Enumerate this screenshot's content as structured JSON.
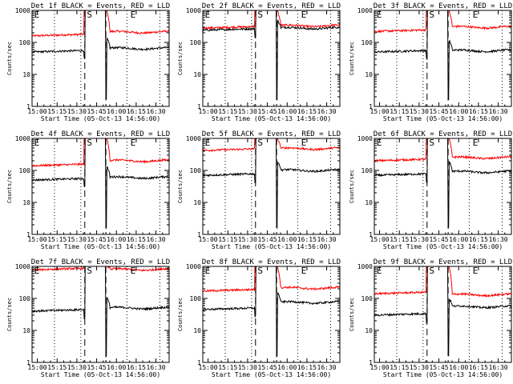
{
  "chart_data": {
    "type": "line",
    "ylabel": "Counts/sec",
    "xlabel": "Start Time (05-Oct-13 14:56:00)",
    "yscale": "log",
    "ylim": [
      1,
      1000
    ],
    "xlim": [
      "14:56",
      "16:40"
    ],
    "x_ticks": [
      "15:00",
      "15:15",
      "15:30",
      "15:45",
      "16:00",
      "16:15",
      "16:30"
    ],
    "y_ticks": [
      "1",
      "10",
      "100",
      "1000"
    ],
    "grid": false,
    "colors": {
      "events": "#000000",
      "lld": "#ff0000"
    },
    "dotted_lines_at": [
      "15:13",
      "15:33",
      "16:08",
      "16:33"
    ],
    "dashed_lines_at": [
      "15:36",
      "15:52"
    ],
    "markers": [
      {
        "label": "E",
        "x": "14:57"
      },
      {
        "label": "S",
        "x": "15:37"
      },
      {
        "label": "E",
        "x": "16:10"
      }
    ],
    "panels": [
      {
        "title": "Det 1f BLACK = Events, RED = LLD",
        "series": [
          {
            "color": "red",
            "start": 160,
            "end": 210,
            "spike_end": 1000
          },
          {
            "color": "black",
            "start": 50,
            "end": 65,
            "spike_end": 140
          }
        ]
      },
      {
        "title": "Det 2f BLACK = Events, RED = LLD",
        "series": [
          {
            "color": "red",
            "start": 280,
            "end": 330,
            "spike_end": 1000
          },
          {
            "color": "black",
            "start": 240,
            "end": 280,
            "spike_end": 500
          }
        ]
      },
      {
        "title": "Det 3f BLACK = Events, RED = LLD",
        "series": [
          {
            "color": "red",
            "start": 220,
            "end": 300,
            "spike_end": 1000
          },
          {
            "color": "black",
            "start": 50,
            "end": 55,
            "spike_end": 120
          }
        ]
      },
      {
        "title": "Det 4f BLACK = Events, RED = LLD",
        "series": [
          {
            "color": "red",
            "start": 140,
            "end": 200,
            "spike_end": 1000
          },
          {
            "color": "black",
            "start": 50,
            "end": 60,
            "spike_end": 140
          }
        ]
      },
      {
        "title": "Det 5f BLACK = Events, RED = LLD",
        "series": [
          {
            "color": "red",
            "start": 420,
            "end": 480,
            "spike_end": 1000
          },
          {
            "color": "black",
            "start": 70,
            "end": 100,
            "spike_end": 200
          }
        ]
      },
      {
        "title": "Det 6f BLACK = Events, RED = LLD",
        "series": [
          {
            "color": "red",
            "start": 200,
            "end": 250,
            "spike_end": 1000
          },
          {
            "color": "black",
            "start": 70,
            "end": 90,
            "spike_end": 200
          }
        ]
      },
      {
        "title": "Det 7f BLACK = Events, RED = LLD",
        "series": [
          {
            "color": "red",
            "start": 780,
            "end": 800,
            "spike_end": 1000
          },
          {
            "color": "black",
            "start": 40,
            "end": 50,
            "spike_end": 110
          }
        ]
      },
      {
        "title": "Det 8f BLACK = Events, RED = LLD",
        "series": [
          {
            "color": "red",
            "start": 170,
            "end": 210,
            "spike_end": 1000
          },
          {
            "color": "black",
            "start": 45,
            "end": 75,
            "spike_end": 160
          }
        ]
      },
      {
        "title": "Det 9f BLACK = Events, RED = LLD",
        "series": [
          {
            "color": "red",
            "start": 140,
            "end": 130,
            "spike_end": 1000
          },
          {
            "color": "black",
            "start": 30,
            "end": 55,
            "spike_end": 100
          }
        ]
      }
    ]
  }
}
